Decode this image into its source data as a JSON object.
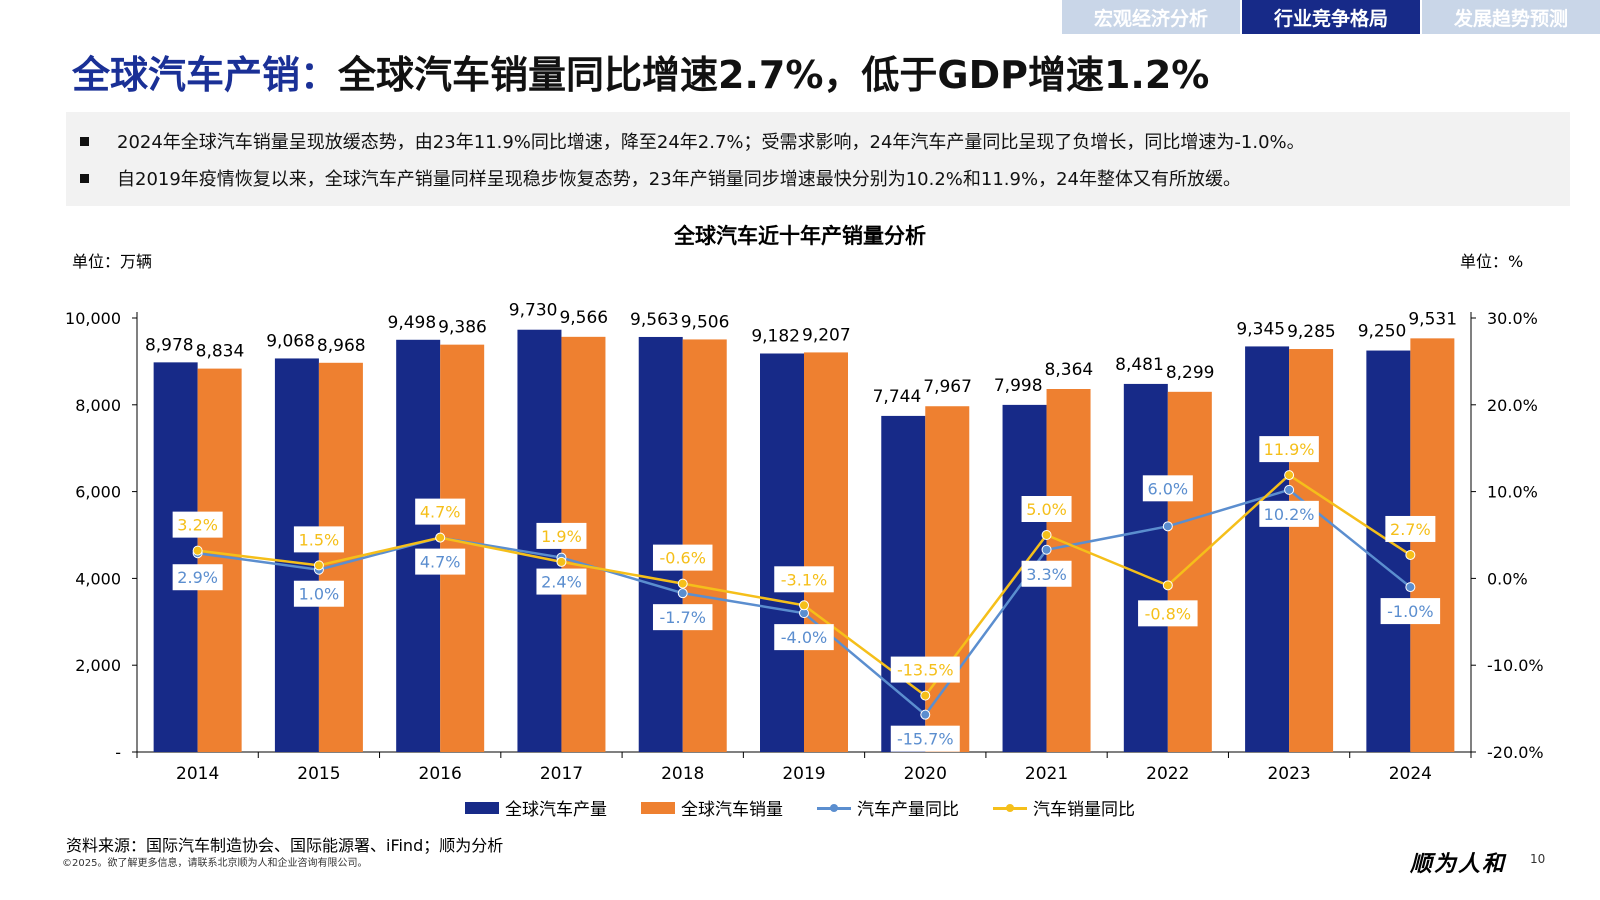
{
  "tabs": [
    {
      "label": "宏观经济分析",
      "active": false
    },
    {
      "label": "行业竞争格局",
      "active": true
    },
    {
      "label": "发展趋势预测",
      "active": false
    }
  ],
  "title": {
    "key": "全球汽车产销：",
    "rest": "全球汽车销量同比增速2.7%，低于GDP增速1.2%"
  },
  "summary": [
    "2024年全球汽车销量呈现放缓态势，由23年11.9%同比增速，降至24年2.7%；受需求影响，24年汽车产量同比呈现了负增长，同比增速为-1.0%。",
    "自2019年疫情恢复以来，全球汽车产销量同样呈现稳步恢复态势，23年产销量同步增速最快分别为10.2%和11.9%，24年整体又有所放缓。"
  ],
  "chart_data": {
    "type": "bar",
    "title": "全球汽车近十年产销量分析",
    "ylabel_left": "单位：万辆",
    "ylabel_right": "单位：%",
    "categories": [
      "2014",
      "2015",
      "2016",
      "2017",
      "2018",
      "2019",
      "2020",
      "2021",
      "2022",
      "2023",
      "2024"
    ],
    "ylim_left": [
      0,
      10000
    ],
    "ylim_right": [
      -20,
      30
    ],
    "yticks_left": [
      "-",
      "2,000",
      "4,000",
      "6,000",
      "8,000",
      "10,000"
    ],
    "yticks_right": [
      "-20.0%",
      "-10.0%",
      "0.0%",
      "10.0%",
      "20.0%",
      "30.0%"
    ],
    "grid": false,
    "legend_position": "bottom",
    "series": [
      {
        "name": "全球汽车产量",
        "kind": "bar",
        "axis": "left",
        "color": "#172a88",
        "values": [
          8978,
          9068,
          9498,
          9730,
          9563,
          9182,
          7744,
          7998,
          8481,
          9345,
          9250
        ],
        "labels": [
          "8,978",
          "9,068",
          "9,498",
          "9,730",
          "9,563",
          "9,182",
          "7,744",
          "7,998",
          "8,481",
          "9,345",
          "9,250"
        ]
      },
      {
        "name": "全球汽车销量",
        "kind": "bar",
        "axis": "left",
        "color": "#ee8030",
        "values": [
          8834,
          8968,
          9386,
          9566,
          9506,
          9207,
          7967,
          8364,
          8299,
          9285,
          9531
        ],
        "labels": [
          "8,834",
          "8,968",
          "9,386",
          "9,566",
          "9,506",
          "9,207",
          "7,967",
          "8,364",
          "8,299",
          "9,285",
          "9,531"
        ]
      },
      {
        "name": "汽车产量同比",
        "kind": "line",
        "axis": "right",
        "color": "#5b8ecf",
        "values": [
          2.9,
          1.0,
          4.7,
          2.4,
          -1.7,
          -4.0,
          -15.7,
          3.3,
          6.0,
          10.2,
          -1.0
        ],
        "labels": [
          "2.9%",
          "1.0%",
          "4.7%",
          "2.4%",
          "-1.7%",
          "-4.0%",
          "-15.7%",
          "3.3%",
          "6.0%",
          "10.2%",
          "-1.0%"
        ]
      },
      {
        "name": "汽车销量同比",
        "kind": "line",
        "axis": "right",
        "color": "#f5bf1a",
        "values": [
          3.2,
          1.5,
          4.7,
          1.9,
          -0.6,
          -3.1,
          -13.5,
          5.0,
          -0.8,
          11.9,
          2.7
        ],
        "labels": [
          "3.2%",
          "1.5%",
          "4.7%",
          "1.9%",
          "-0.6%",
          "-3.1%",
          "-13.5%",
          "5.0%",
          "-0.8%",
          "11.9%",
          "2.7%"
        ]
      }
    ]
  },
  "source": "资料来源：国际汽车制造协会、国际能源署、iFind；顺为分析",
  "copyright": "©2025。欲了解更多信息，请联系北京顺为人和企业咨询有限公司。",
  "brand": "顺为人和",
  "page_number": "10"
}
